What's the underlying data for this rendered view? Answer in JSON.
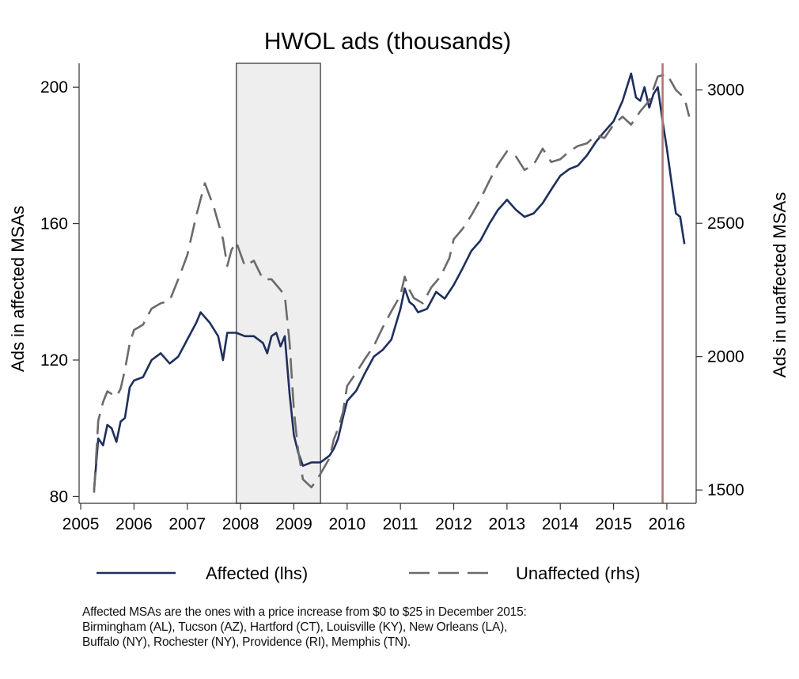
{
  "chart_data": {
    "type": "line",
    "title": "HWOL ads (thousands)",
    "ylabel_left": "Ads in affected MSAs",
    "ylabel_right": "Ads in unaffected MSAs",
    "ylim_left": [
      78,
      207
    ],
    "ylim_right": [
      1450,
      3100
    ],
    "xlim": [
      2004.97,
      2016.55
    ],
    "x_ticks": [
      2005,
      2006,
      2007,
      2008,
      2009,
      2010,
      2011,
      2012,
      2013,
      2014,
      2015,
      2016
    ],
    "y_ticks_left": [
      80,
      120,
      160,
      200
    ],
    "y_ticks_right": [
      1500,
      2000,
      2500,
      3000
    ],
    "shaded_region": [
      2007.92,
      2009.5
    ],
    "vertical_line": {
      "x": 2015.92,
      "color": "#b07a72"
    },
    "legend_position": "bottom",
    "series": [
      {
        "name": "Affected (lhs)",
        "axis": "left",
        "color": "#1f2f5c",
        "style": "solid",
        "points": [
          [
            2005.25,
            82
          ],
          [
            2005.33,
            97
          ],
          [
            2005.42,
            95
          ],
          [
            2005.5,
            101
          ],
          [
            2005.58,
            100
          ],
          [
            2005.67,
            96
          ],
          [
            2005.75,
            102
          ],
          [
            2005.83,
            103
          ],
          [
            2005.92,
            112
          ],
          [
            2006.0,
            114
          ],
          [
            2006.17,
            115
          ],
          [
            2006.33,
            120
          ],
          [
            2006.5,
            122
          ],
          [
            2006.67,
            119
          ],
          [
            2006.83,
            121
          ],
          [
            2007.0,
            126
          ],
          [
            2007.17,
            131
          ],
          [
            2007.25,
            134
          ],
          [
            2007.42,
            131
          ],
          [
            2007.58,
            127
          ],
          [
            2007.67,
            120
          ],
          [
            2007.75,
            128
          ],
          [
            2007.92,
            128
          ],
          [
            2008.08,
            127
          ],
          [
            2008.25,
            127
          ],
          [
            2008.42,
            125
          ],
          [
            2008.5,
            122
          ],
          [
            2008.58,
            127
          ],
          [
            2008.67,
            128
          ],
          [
            2008.75,
            124
          ],
          [
            2008.83,
            127
          ],
          [
            2008.92,
            110
          ],
          [
            2009.0,
            98
          ],
          [
            2009.08,
            93
          ],
          [
            2009.17,
            89
          ],
          [
            2009.33,
            90
          ],
          [
            2009.5,
            90
          ],
          [
            2009.67,
            92
          ],
          [
            2009.75,
            94
          ],
          [
            2009.83,
            97
          ],
          [
            2009.92,
            103
          ],
          [
            2010.0,
            108
          ],
          [
            2010.17,
            111
          ],
          [
            2010.33,
            116
          ],
          [
            2010.5,
            121
          ],
          [
            2010.67,
            123
          ],
          [
            2010.83,
            126
          ],
          [
            2011.0,
            135
          ],
          [
            2011.08,
            141
          ],
          [
            2011.17,
            137
          ],
          [
            2011.25,
            136
          ],
          [
            2011.33,
            134
          ],
          [
            2011.5,
            135
          ],
          [
            2011.67,
            140
          ],
          [
            2011.83,
            138
          ],
          [
            2012.0,
            142
          ],
          [
            2012.17,
            147
          ],
          [
            2012.33,
            152
          ],
          [
            2012.5,
            155
          ],
          [
            2012.67,
            160
          ],
          [
            2012.83,
            164
          ],
          [
            2013.0,
            167
          ],
          [
            2013.17,
            164
          ],
          [
            2013.33,
            162
          ],
          [
            2013.5,
            163
          ],
          [
            2013.67,
            166
          ],
          [
            2013.83,
            170
          ],
          [
            2014.0,
            174
          ],
          [
            2014.17,
            176
          ],
          [
            2014.33,
            177
          ],
          [
            2014.5,
            180
          ],
          [
            2014.67,
            184
          ],
          [
            2014.83,
            187
          ],
          [
            2015.0,
            190
          ],
          [
            2015.17,
            196
          ],
          [
            2015.33,
            204
          ],
          [
            2015.42,
            197
          ],
          [
            2015.5,
            196
          ],
          [
            2015.58,
            200
          ],
          [
            2015.67,
            194
          ],
          [
            2015.75,
            198
          ],
          [
            2015.83,
            200
          ],
          [
            2015.92,
            190
          ],
          [
            2016.0,
            182
          ],
          [
            2016.08,
            173
          ],
          [
            2016.17,
            163
          ],
          [
            2016.25,
            162
          ],
          [
            2016.33,
            154
          ]
        ]
      },
      {
        "name": "Unaffected (rhs)",
        "axis": "right",
        "color": "#6b6b6b",
        "style": "dashed",
        "points": [
          [
            2005.25,
            1490
          ],
          [
            2005.33,
            1760
          ],
          [
            2005.42,
            1830
          ],
          [
            2005.5,
            1870
          ],
          [
            2005.58,
            1860
          ],
          [
            2005.67,
            1850
          ],
          [
            2005.75,
            1880
          ],
          [
            2005.83,
            1950
          ],
          [
            2005.92,
            2050
          ],
          [
            2006.0,
            2100
          ],
          [
            2006.17,
            2120
          ],
          [
            2006.33,
            2180
          ],
          [
            2006.5,
            2200
          ],
          [
            2006.67,
            2210
          ],
          [
            2006.83,
            2290
          ],
          [
            2007.0,
            2380
          ],
          [
            2007.17,
            2530
          ],
          [
            2007.33,
            2650
          ],
          [
            2007.5,
            2560
          ],
          [
            2007.67,
            2440
          ],
          [
            2007.75,
            2340
          ],
          [
            2007.83,
            2400
          ],
          [
            2007.92,
            2430
          ],
          [
            2008.08,
            2340
          ],
          [
            2008.25,
            2360
          ],
          [
            2008.42,
            2290
          ],
          [
            2008.58,
            2290
          ],
          [
            2008.75,
            2250
          ],
          [
            2008.83,
            2230
          ],
          [
            2008.92,
            2050
          ],
          [
            2009.0,
            1800
          ],
          [
            2009.08,
            1650
          ],
          [
            2009.17,
            1540
          ],
          [
            2009.33,
            1510
          ],
          [
            2009.5,
            1560
          ],
          [
            2009.67,
            1620
          ],
          [
            2009.75,
            1690
          ],
          [
            2009.83,
            1730
          ],
          [
            2009.92,
            1790
          ],
          [
            2010.0,
            1890
          ],
          [
            2010.17,
            1940
          ],
          [
            2010.33,
            1990
          ],
          [
            2010.5,
            2040
          ],
          [
            2010.67,
            2110
          ],
          [
            2010.83,
            2170
          ],
          [
            2011.0,
            2230
          ],
          [
            2011.08,
            2300
          ],
          [
            2011.17,
            2250
          ],
          [
            2011.25,
            2220
          ],
          [
            2011.42,
            2200
          ],
          [
            2011.58,
            2260
          ],
          [
            2011.75,
            2300
          ],
          [
            2011.92,
            2370
          ],
          [
            2012.0,
            2440
          ],
          [
            2012.17,
            2480
          ],
          [
            2012.33,
            2530
          ],
          [
            2012.5,
            2590
          ],
          [
            2012.67,
            2660
          ],
          [
            2012.83,
            2720
          ],
          [
            2013.0,
            2770
          ],
          [
            2013.17,
            2750
          ],
          [
            2013.33,
            2700
          ],
          [
            2013.5,
            2720
          ],
          [
            2013.67,
            2780
          ],
          [
            2013.83,
            2730
          ],
          [
            2014.0,
            2740
          ],
          [
            2014.17,
            2770
          ],
          [
            2014.33,
            2790
          ],
          [
            2014.5,
            2800
          ],
          [
            2014.67,
            2830
          ],
          [
            2014.83,
            2820
          ],
          [
            2015.0,
            2870
          ],
          [
            2015.17,
            2900
          ],
          [
            2015.33,
            2870
          ],
          [
            2015.5,
            2920
          ],
          [
            2015.67,
            2960
          ],
          [
            2015.83,
            3050
          ],
          [
            2016.0,
            3060
          ],
          [
            2016.17,
            3000
          ],
          [
            2016.33,
            2970
          ],
          [
            2016.42,
            2900
          ]
        ]
      }
    ]
  },
  "note": {
    "line1": "Affected MSAs are the ones with a price increase from $0 to $25 in December 2015:",
    "line2": "Birmingham (AL), Tucson (AZ), Hartford (CT), Louisville (KY), New Orleans (LA),",
    "line3": "Buffalo (NY), Rochester (NY), Providence (RI), Memphis (TN)."
  }
}
